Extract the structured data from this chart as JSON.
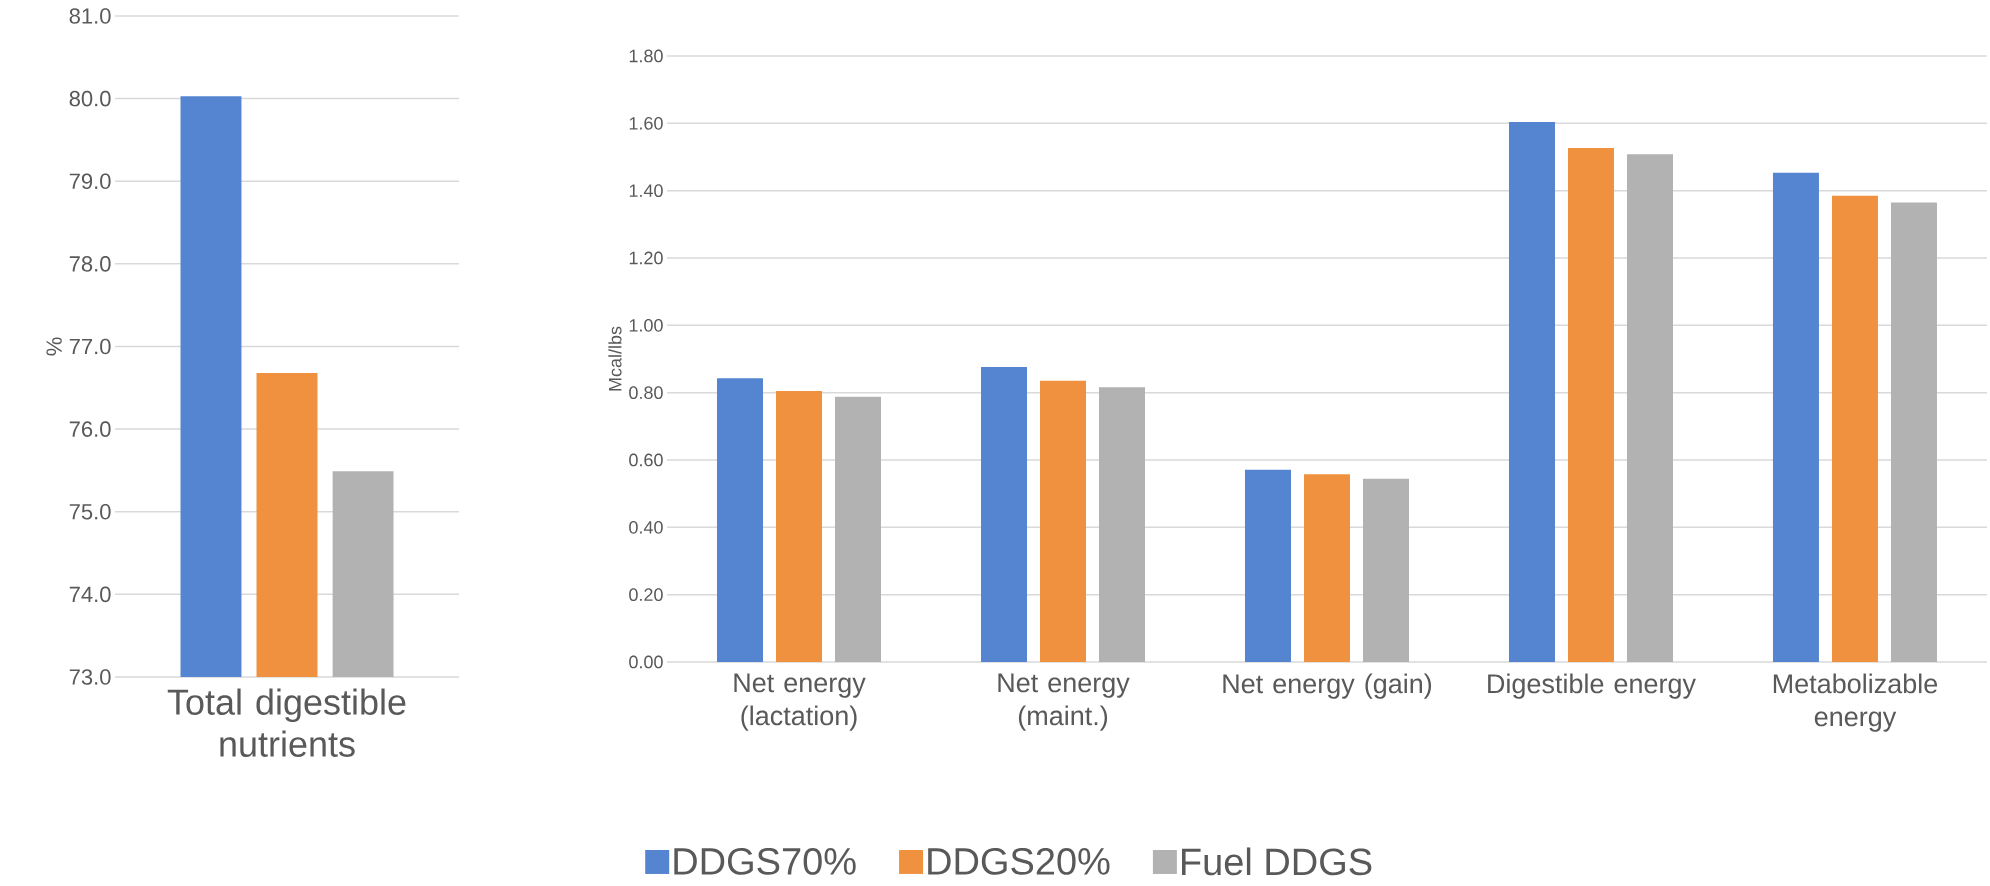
{
  "chart_data": [
    {
      "type": "bar",
      "ylabel": "%",
      "categories": [
        "Total digestible nutrients"
      ],
      "ylim": [
        73,
        81
      ],
      "yticks": [
        {
          "value": 73,
          "label": "73.0"
        },
        {
          "value": 74,
          "label": "74.0"
        },
        {
          "value": 75,
          "label": "75.0"
        },
        {
          "value": 76,
          "label": "76.0"
        },
        {
          "value": 77,
          "label": "77.0"
        },
        {
          "value": 78,
          "label": "78.0"
        },
        {
          "value": 79,
          "label": "79.0"
        },
        {
          "value": 80,
          "label": "80.0"
        },
        {
          "value": 81,
          "label": "81.0"
        }
      ],
      "grid": "y",
      "legend": false,
      "series": [
        {
          "color": "#5585d0",
          "values": [
            80.03
          ]
        },
        {
          "color": "#f0913f",
          "values": [
            76.68
          ]
        },
        {
          "color": "#b2b2b2",
          "values": [
            75.49
          ]
        }
      ]
    },
    {
      "type": "bar",
      "ylabel": "Mcal/lbs",
      "categories": [
        "Net energy (lactation)",
        "Net energy (maint.)",
        "Net energy (gain)",
        "Digestible energy",
        "Metabolizable energy"
      ],
      "ylim": [
        0,
        1.8
      ],
      "yticks": [
        {
          "value": 0,
          "label": "0.00"
        },
        {
          "value": 0.2,
          "label": "0.20"
        },
        {
          "value": 0.4,
          "label": "0.40"
        },
        {
          "value": 0.6,
          "label": "0.60"
        },
        {
          "value": 0.8,
          "label": "0.80"
        },
        {
          "value": 1.0,
          "label": "1.00"
        },
        {
          "value": 1.2,
          "label": "1.20"
        },
        {
          "value": 1.4,
          "label": "1.40"
        },
        {
          "value": 1.6,
          "label": "1.60"
        },
        {
          "value": 1.8,
          "label": "1.80"
        }
      ],
      "grid": "y",
      "legend": "bottom",
      "series": [
        {
          "name": "DDGS70%",
          "color": "#5585d0",
          "values": [
            0.843,
            0.876,
            0.571,
            1.604,
            1.453
          ]
        },
        {
          "name": "DDGS20%",
          "color": "#f0913f",
          "values": [
            0.805,
            0.835,
            0.558,
            1.527,
            1.385
          ]
        },
        {
          "name": "Fuel DDGS",
          "color": "#b2b2b2",
          "values": [
            0.788,
            0.816,
            0.544,
            1.508,
            1.365
          ]
        }
      ]
    }
  ]
}
